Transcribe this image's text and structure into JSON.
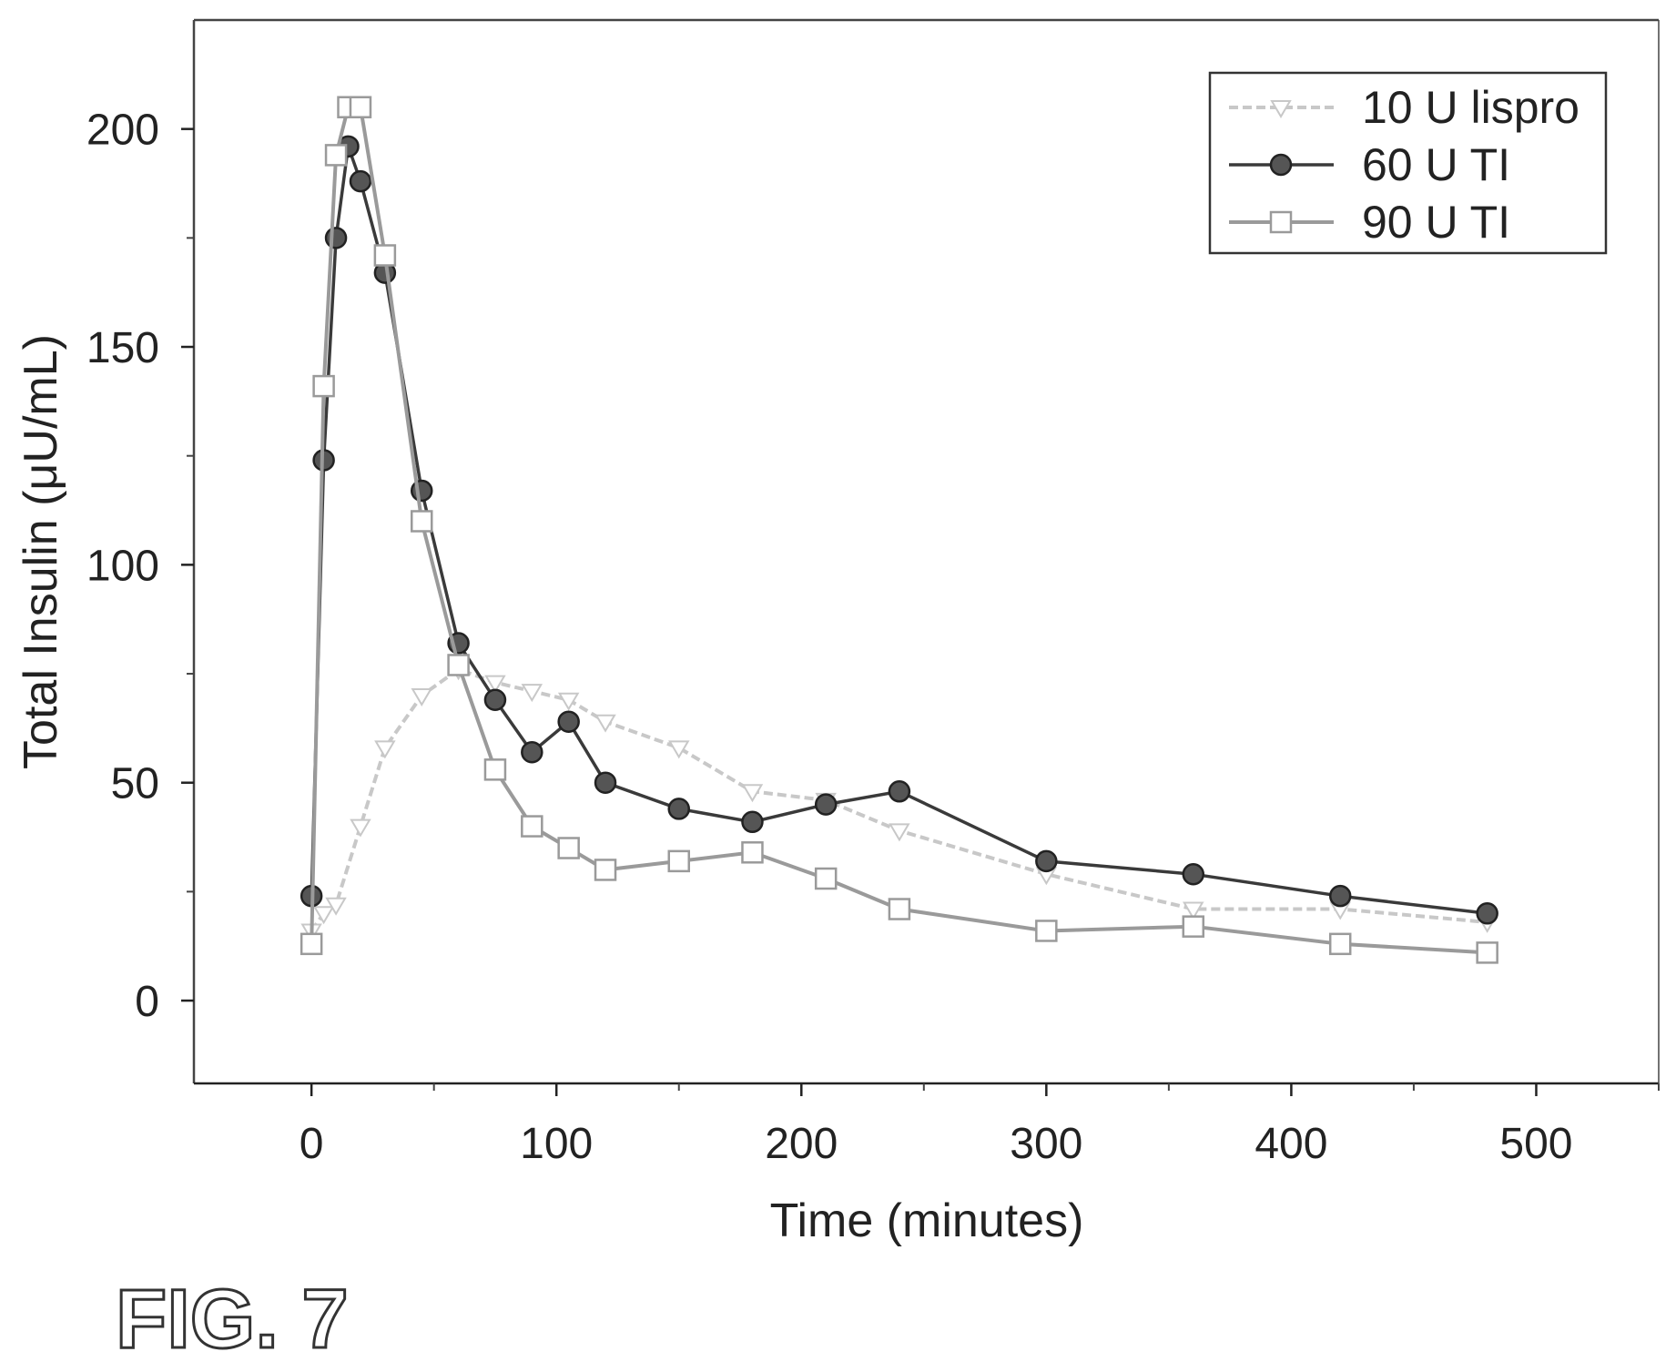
{
  "figure_label": "FIG. 7",
  "chart_data": {
    "type": "line",
    "title": "",
    "xlabel": "Time (minutes)",
    "ylabel": "Total Insulin (μU/mL)",
    "xlim": [
      -48,
      550
    ],
    "ylim": [
      -19,
      225
    ],
    "xticks": [
      0,
      100,
      200,
      300,
      400,
      500
    ],
    "yticks": [
      0,
      50,
      100,
      150,
      200
    ],
    "xticks_minor": [
      50,
      150,
      250,
      350,
      450,
      550
    ],
    "yticks_minor": [
      25,
      75,
      125,
      175
    ],
    "grid": false,
    "legend_position": "top-right",
    "series": [
      {
        "name": "10 U lispro",
        "color": "#c8c8c8",
        "marker": "triangle-down",
        "dashed": true,
        "x": [
          0,
          5,
          10,
          20,
          30,
          45,
          60,
          75,
          90,
          105,
          120,
          150,
          180,
          210,
          240,
          300,
          360,
          420,
          480
        ],
        "y": [
          16,
          20,
          22,
          40,
          58,
          70,
          76,
          73,
          71,
          69,
          64,
          58,
          48,
          46,
          39,
          29,
          21,
          21,
          18
        ]
      },
      {
        "name": "60 U TI",
        "color": "#3a3a3a",
        "marker": "circle",
        "dashed": false,
        "x": [
          0,
          5,
          10,
          15,
          20,
          30,
          45,
          60,
          75,
          90,
          105,
          120,
          150,
          180,
          210,
          240,
          300,
          360,
          420,
          480
        ],
        "y": [
          24,
          124,
          175,
          196,
          188,
          167,
          117,
          82,
          69,
          57,
          64,
          50,
          44,
          41,
          45,
          48,
          32,
          29,
          24,
          20
        ]
      },
      {
        "name": "90 U TI",
        "color": "#9a9a9a",
        "marker": "square",
        "dashed": false,
        "x": [
          0,
          5,
          10,
          15,
          20,
          30,
          45,
          60,
          75,
          90,
          105,
          120,
          150,
          180,
          210,
          240,
          300,
          360,
          420,
          480
        ],
        "y": [
          13,
          141,
          194,
          205,
          205,
          171,
          110,
          77,
          53,
          40,
          35,
          30,
          32,
          34,
          28,
          21,
          16,
          17,
          13,
          11
        ]
      }
    ]
  }
}
